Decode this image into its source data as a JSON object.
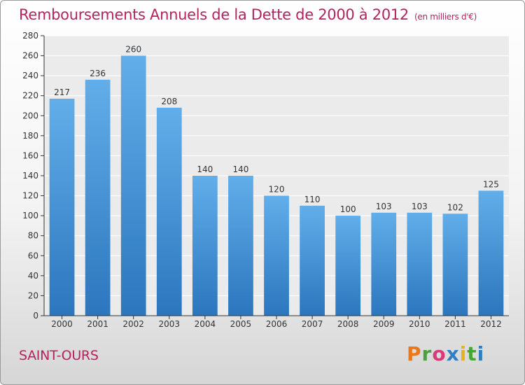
{
  "header": {
    "title": "Remboursements Annuels de la Dette de 2000 à 2012",
    "subtitle": "(en milliers d'€)"
  },
  "footer": {
    "commune": "SAINT-OURS",
    "logo_text": "Proxiti",
    "logo_colors": [
      "#e8781e",
      "#4aa33a",
      "#d93a7a",
      "#2f7fc2",
      "#e8b21e",
      "#4aa33a",
      "#2f7fc2"
    ]
  },
  "chart_data": {
    "type": "bar",
    "categories": [
      "2000",
      "2001",
      "2002",
      "2003",
      "2004",
      "2005",
      "2006",
      "2007",
      "2008",
      "2009",
      "2010",
      "2011",
      "2012"
    ],
    "values": [
      217,
      236,
      260,
      208,
      140,
      140,
      120,
      110,
      100,
      103,
      103,
      102,
      125
    ],
    "ylim": [
      0,
      280
    ],
    "yticks": [
      0,
      20,
      40,
      60,
      80,
      100,
      120,
      140,
      160,
      180,
      200,
      220,
      240,
      260,
      280
    ],
    "grid": true,
    "bar_color": "#3d8fd6",
    "bar_color_light": "#62aeea",
    "bar_color_dark": "#2b76bd"
  }
}
